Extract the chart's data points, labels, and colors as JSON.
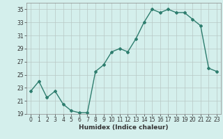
{
  "x": [
    0,
    1,
    2,
    3,
    4,
    5,
    6,
    7,
    8,
    9,
    10,
    11,
    12,
    13,
    14,
    15,
    16,
    17,
    18,
    19,
    20,
    21,
    22,
    23
  ],
  "y": [
    22.5,
    24.0,
    21.5,
    22.5,
    20.5,
    19.5,
    19.2,
    19.2,
    25.5,
    26.5,
    28.5,
    29.0,
    28.5,
    30.5,
    33.0,
    35.0,
    34.5,
    35.0,
    34.5,
    34.5,
    33.5,
    32.5,
    26.0,
    25.5
  ],
  "line_color": "#2e7d6e",
  "marker": "D",
  "markersize": 2.0,
  "linewidth": 1.0,
  "bg_color": "#d4efec",
  "grid_color": "#b8c8c4",
  "xlabel": "Humidex (Indice chaleur)",
  "xlim": [
    -0.5,
    23.5
  ],
  "ylim": [
    19,
    36
  ],
  "yticks": [
    19,
    21,
    23,
    25,
    27,
    29,
    31,
    33,
    35
  ],
  "xticks": [
    0,
    1,
    2,
    3,
    4,
    5,
    6,
    7,
    8,
    9,
    10,
    11,
    12,
    13,
    14,
    15,
    16,
    17,
    18,
    19,
    20,
    21,
    22,
    23
  ],
  "xlabel_fontsize": 6.5,
  "tick_fontsize": 5.5
}
